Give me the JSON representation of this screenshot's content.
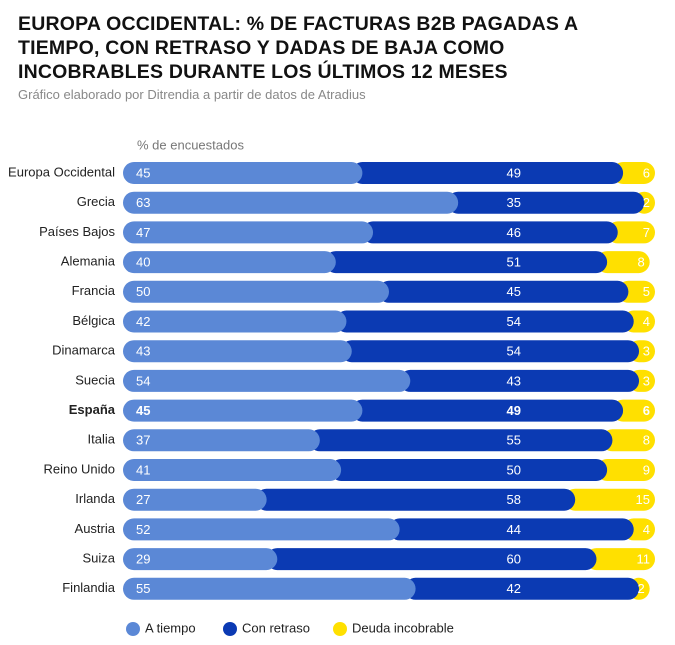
{
  "chart_data": {
    "type": "stacked_bar_horizontal",
    "title": "EUROPA OCCIDENTAL: % DE FACTURAS B2B PAGADAS A TIEMPO, CON RETRASO Y DADAS DE BAJA COMO INCOBRABLES DURANTE LOS ÚLTIMOS 12 MESES",
    "subtitle": "Gráfico elaborado por Ditrendia a partir de datos de Atradius",
    "axis_label": "% de encuestados",
    "categories": [
      "Europa Occidental",
      "Grecia",
      "Países Bajos",
      "Alemania",
      "Francia",
      "Bélgica",
      "Dinamarca",
      "Suecia",
      "España",
      "Italia",
      "Reino Unido",
      "Irlanda",
      "Austria",
      "Suiza",
      "Finlandia"
    ],
    "highlight_index": 8,
    "xlim": [
      0,
      100
    ],
    "series": [
      {
        "name": "A tiempo",
        "color": "#5b88d6",
        "values": [
          45,
          63,
          47,
          40,
          50,
          42,
          43,
          54,
          45,
          37,
          41,
          27,
          52,
          29,
          55
        ]
      },
      {
        "name": "Con retraso",
        "color": "#0b3ab3",
        "values": [
          49,
          35,
          46,
          51,
          45,
          54,
          54,
          43,
          49,
          55,
          50,
          58,
          44,
          60,
          42
        ]
      },
      {
        "name": "Deuda incobrable",
        "color": "#ffe000",
        "values": [
          6,
          2,
          7,
          8,
          5,
          4,
          3,
          3,
          6,
          8,
          9,
          15,
          4,
          11,
          2
        ]
      }
    ]
  }
}
